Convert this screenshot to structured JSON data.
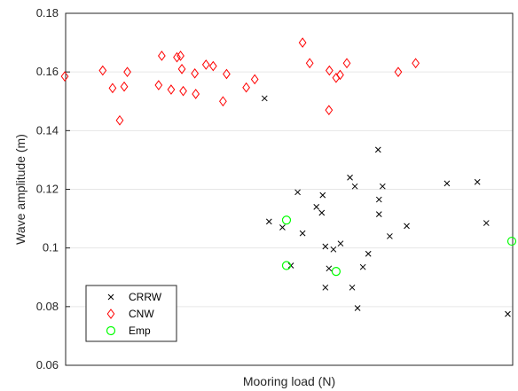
{
  "chart_data": {
    "type": "scatter",
    "xlabel": "Mooring load (N)",
    "ylabel": "Wave amplitude (m)",
    "xlim": [
      0,
      100
    ],
    "ylim": [
      0.06,
      0.18
    ],
    "y_ticks": [
      0.06,
      0.08,
      0.1,
      0.12,
      0.14,
      0.16,
      0.18
    ],
    "y_tick_labels": [
      "0.06",
      "0.08",
      "0.1",
      "0.12",
      "0.14",
      "0.16",
      "0.18"
    ],
    "x_tick_labels_shown": false,
    "grid": "y-only",
    "legend_position": "bottom-left",
    "series": [
      {
        "name": "CRRW",
        "marker": "x",
        "color": "#000000",
        "points": [
          [
            44.5,
            0.151
          ],
          [
            45.5,
            0.109
          ],
          [
            48.5,
            0.107
          ],
          [
            50.4,
            0.094
          ],
          [
            51.9,
            0.119
          ],
          [
            53.0,
            0.105
          ],
          [
            56.1,
            0.114
          ],
          [
            57.3,
            0.112
          ],
          [
            57.5,
            0.118
          ],
          [
            58.1,
            0.1005
          ],
          [
            58.1,
            0.0865
          ],
          [
            58.9,
            0.093
          ],
          [
            59.9,
            0.0995
          ],
          [
            61.5,
            0.1015
          ],
          [
            63.6,
            0.124
          ],
          [
            64.1,
            0.0865
          ],
          [
            64.7,
            0.121
          ],
          [
            65.3,
            0.0795
          ],
          [
            66.5,
            0.0935
          ],
          [
            67.7,
            0.098
          ],
          [
            69.9,
            0.1335
          ],
          [
            70.1,
            0.1165
          ],
          [
            70.1,
            0.1115
          ],
          [
            70.9,
            0.121
          ],
          [
            72.5,
            0.104
          ],
          [
            76.3,
            0.1075
          ],
          [
            85.3,
            0.122
          ],
          [
            92.1,
            0.1225
          ],
          [
            94.1,
            0.1085
          ],
          [
            98.9,
            0.0775
          ]
        ]
      },
      {
        "name": "CNW",
        "marker": "diamond",
        "color": "#ff0000",
        "points": [
          [
            -0.2,
            0.1585
          ],
          [
            8.3,
            0.1605
          ],
          [
            10.5,
            0.1545
          ],
          [
            12.1,
            0.1435
          ],
          [
            13.1,
            0.155
          ],
          [
            13.8,
            0.16
          ],
          [
            20.8,
            0.1555
          ],
          [
            21.5,
            0.1655
          ],
          [
            23.6,
            0.154
          ],
          [
            24.9,
            0.165
          ],
          [
            25.7,
            0.1655
          ],
          [
            26.0,
            0.161
          ],
          [
            26.3,
            0.1535
          ],
          [
            28.9,
            0.1595
          ],
          [
            29.1,
            0.1525
          ],
          [
            31.4,
            0.1625
          ],
          [
            33.0,
            0.162
          ],
          [
            35.2,
            0.15
          ],
          [
            36.0,
            0.1593
          ],
          [
            40.4,
            0.1547
          ],
          [
            42.3,
            0.1575
          ],
          [
            53.0,
            0.17
          ],
          [
            54.6,
            0.163
          ],
          [
            58.9,
            0.147
          ],
          [
            59.0,
            0.1605
          ],
          [
            60.5,
            0.158
          ],
          [
            61.4,
            0.159
          ],
          [
            62.9,
            0.163
          ],
          [
            74.4,
            0.16
          ],
          [
            78.3,
            0.163
          ]
        ]
      },
      {
        "name": "Emp",
        "marker": "circle",
        "color": "#00ff00",
        "points": [
          [
            49.4,
            0.1095
          ],
          [
            49.4,
            0.094
          ],
          [
            60.5,
            0.092
          ],
          [
            99.8,
            0.1023
          ]
        ]
      }
    ]
  }
}
